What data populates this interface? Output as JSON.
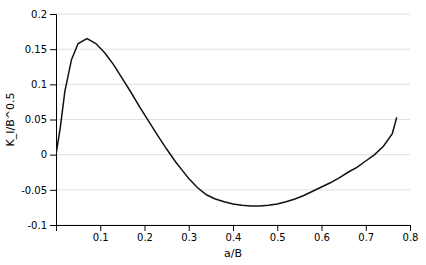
{
  "chart_data": {
    "type": "line",
    "xlabel": "a/B",
    "ylabel": "K_I/B^0.5",
    "xlim": [
      0,
      0.8
    ],
    "ylim": [
      -0.1,
      0.2
    ],
    "xticks": [
      0.1,
      0.2,
      0.3,
      0.4,
      0.5,
      0.6,
      0.7,
      0.8
    ],
    "yticks": [
      -0.1,
      -0.05,
      0,
      0.05,
      0.1,
      0.15,
      0.2
    ],
    "grid": true,
    "color": "#111111",
    "x": [
      0.0,
      0.01,
      0.02,
      0.035,
      0.05,
      0.07,
      0.09,
      0.11,
      0.13,
      0.15,
      0.17,
      0.19,
      0.21,
      0.23,
      0.25,
      0.27,
      0.285,
      0.3,
      0.32,
      0.34,
      0.36,
      0.38,
      0.4,
      0.42,
      0.44,
      0.46,
      0.48,
      0.5,
      0.52,
      0.54,
      0.56,
      0.58,
      0.6,
      0.62,
      0.64,
      0.66,
      0.68,
      0.7,
      0.72,
      0.74,
      0.76,
      0.77
    ],
    "values": [
      0.0,
      0.04,
      0.09,
      0.135,
      0.158,
      0.165,
      0.158,
      0.145,
      0.128,
      0.108,
      0.088,
      0.067,
      0.047,
      0.027,
      0.008,
      -0.01,
      -0.022,
      -0.034,
      -0.047,
      -0.057,
      -0.063,
      -0.067,
      -0.07,
      -0.072,
      -0.073,
      -0.073,
      -0.072,
      -0.07,
      -0.067,
      -0.063,
      -0.058,
      -0.052,
      -0.046,
      -0.04,
      -0.033,
      -0.025,
      -0.018,
      -0.009,
      0.0,
      0.012,
      0.03,
      0.053
    ]
  }
}
